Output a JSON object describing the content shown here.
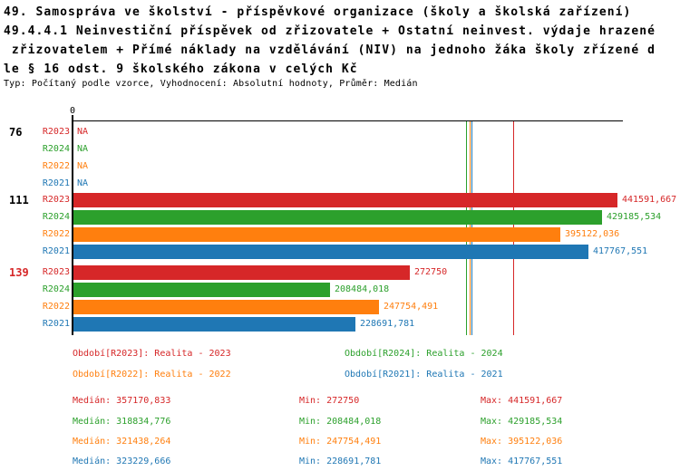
{
  "title": {
    "line1": "49. Samospráva ve školství - příspěvkové organizace (školy a školská zařízení)",
    "line2": "49.4.4.1 Neinvestiční příspěvek od zřizovatele + Ostatní neinvest. výdaje hrazené",
    "line3": " zřizovatelem + Přímé náklady na vzdělávání (NIV) na jednoho žáka školy zřízené d",
    "line4": "le § 16 odst. 9 školského zákona v celých Kč",
    "meta": "Typ: Počítaný podle vzorce, Vyhodnocení: Absolutní hodnoty, Průměr: Medián"
  },
  "colors": {
    "r2023": "#d62728",
    "r2024": "#2ca02c",
    "r2022": "#ff7f0e",
    "r2021": "#1f77b4",
    "axis": "#000000"
  },
  "chart_data": {
    "type": "bar",
    "orientation": "horizontal",
    "origin_label": "0",
    "na_label": "NA",
    "xlim": [
      0,
      441591.667
    ],
    "axis_max_value": 441591.667,
    "grid": false,
    "groups": [
      {
        "label": "76",
        "label_color": "#000000",
        "bars": [
          {
            "series": "R2023",
            "color": "#d62728",
            "value": null,
            "value_label": "NA"
          },
          {
            "series": "R2024",
            "color": "#2ca02c",
            "value": null,
            "value_label": "NA"
          },
          {
            "series": "R2022",
            "color": "#ff7f0e",
            "value": null,
            "value_label": "NA"
          },
          {
            "series": "R2021",
            "color": "#1f77b4",
            "value": null,
            "value_label": "NA"
          }
        ]
      },
      {
        "label": "111",
        "label_color": "#000000",
        "bars": [
          {
            "series": "R2023",
            "color": "#d62728",
            "value": 441591.667,
            "value_label": "441591,667"
          },
          {
            "series": "R2024",
            "color": "#2ca02c",
            "value": 429185.534,
            "value_label": "429185,534"
          },
          {
            "series": "R2022",
            "color": "#ff7f0e",
            "value": 395122.036,
            "value_label": "395122,036"
          },
          {
            "series": "R2021",
            "color": "#1f77b4",
            "value": 417767.551,
            "value_label": "417767,551"
          }
        ]
      },
      {
        "label": "139",
        "label_color": "#d62728",
        "bars": [
          {
            "series": "R2023",
            "color": "#d62728",
            "value": 272750,
            "value_label": "272750"
          },
          {
            "series": "R2024",
            "color": "#2ca02c",
            "value": 208484.018,
            "value_label": "208484,018"
          },
          {
            "series": "R2022",
            "color": "#ff7f0e",
            "value": 247754.491,
            "value_label": "247754,491"
          },
          {
            "series": "R2021",
            "color": "#1f77b4",
            "value": 228691.781,
            "value_label": "228691,781"
          }
        ]
      }
    ],
    "median_lines": [
      {
        "series": "R2024",
        "color": "#2ca02c",
        "value": 318834.776
      },
      {
        "series": "R2022",
        "color": "#ff7f0e",
        "value": 321438.264
      },
      {
        "series": "R2021",
        "color": "#1f77b4",
        "value": 323229.666
      },
      {
        "series": "R2023",
        "color": "#d62728",
        "value": 357170.833
      }
    ],
    "legend": [
      {
        "series": "R2023",
        "label": "Období[R2023]: Realita - 2023",
        "color": "#d62728",
        "col": 0,
        "row": 0
      },
      {
        "series": "R2024",
        "label": "Období[R2024]: Realita - 2024",
        "color": "#2ca02c",
        "col": 1,
        "row": 0
      },
      {
        "series": "R2022",
        "label": "Období[R2022]: Realita - 2022",
        "color": "#ff7f0e",
        "col": 0,
        "row": 1
      },
      {
        "series": "R2021",
        "label": "Období[R2021]: Realita - 2021",
        "color": "#1f77b4",
        "col": 1,
        "row": 1
      }
    ],
    "stats": {
      "median_prefix": "Medián:",
      "min_prefix": "Min:",
      "max_prefix": "Max:",
      "rows": [
        {
          "series": "R2023",
          "color": "#d62728",
          "median": "357170,833",
          "min": "272750",
          "max": "441591,667"
        },
        {
          "series": "R2024",
          "color": "#2ca02c",
          "median": "318834,776",
          "min": "208484,018",
          "max": "429185,534"
        },
        {
          "series": "R2022",
          "color": "#ff7f0e",
          "median": "321438,264",
          "min": "247754,491",
          "max": "395122,036"
        },
        {
          "series": "R2021",
          "color": "#1f77b4",
          "median": "323229,666",
          "min": "228691,781",
          "max": "417767,551"
        }
      ]
    }
  }
}
